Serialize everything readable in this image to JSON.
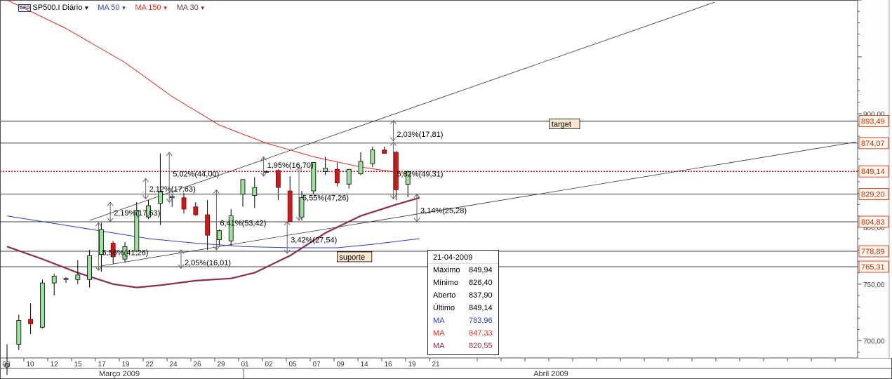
{
  "header": {
    "symbol": "SP500.I Diário",
    "badge": "CFD",
    "ma_items": [
      {
        "label": "MA 50",
        "color": "#2a3fbf"
      },
      {
        "label": "MA 150",
        "color": "#e03020"
      },
      {
        "label": "MA 30",
        "color": "#8b2b52"
      }
    ]
  },
  "info_panel": {
    "date": "21-04-2009",
    "rows": [
      {
        "label": "Máximo",
        "value": "849,94",
        "color": "#000000"
      },
      {
        "label": "Mínimo",
        "value": "826,40",
        "color": "#000000"
      },
      {
        "label": "Aberto",
        "value": "837,90",
        "color": "#000000"
      },
      {
        "label": "Último",
        "value": "849,14",
        "color": "#000000"
      },
      {
        "label": "MA",
        "value": "783,96",
        "color": "#2a3fbf"
      },
      {
        "label": "MA",
        "value": "847,33",
        "color": "#e03020"
      },
      {
        "label": "MA",
        "value": "820,55",
        "color": "#8b2b52"
      }
    ]
  },
  "chart_data": {
    "type": "candlestick",
    "title": "SP500.I Diário",
    "ylim": [
      685,
      1000
    ],
    "y_ticks": [
      {
        "value": 700,
        "label": "700,00"
      },
      {
        "value": 750,
        "label": "750,00"
      },
      {
        "value": 800,
        "label": "800,00"
      },
      {
        "value": 900,
        "label": "900,00"
      }
    ],
    "month_labels": [
      {
        "at": "Março",
        "label": "Março 2009"
      },
      {
        "at": "Abril",
        "label": "Abril 2009"
      }
    ],
    "x_ticks": [
      "08",
      "10",
      "12",
      "15",
      "17",
      "19",
      "22",
      "24",
      "26",
      "29",
      "01",
      "02",
      "05",
      "07",
      "09",
      "14",
      "16",
      "19",
      "21"
    ],
    "candles": [
      {
        "o": 677,
        "h": 697,
        "l": 670,
        "c": 680
      },
      {
        "o": 697,
        "h": 723,
        "l": 692,
        "c": 718
      },
      {
        "o": 719,
        "h": 733,
        "l": 706,
        "c": 715
      },
      {
        "o": 712,
        "h": 754,
        "l": 711,
        "c": 751
      },
      {
        "o": 751,
        "h": 759,
        "l": 740,
        "c": 757
      },
      {
        "o": 754,
        "h": 756,
        "l": 751,
        "c": 755
      },
      {
        "o": 754,
        "h": 771,
        "l": 750,
        "c": 758
      },
      {
        "o": 754,
        "h": 780,
        "l": 747,
        "c": 775
      },
      {
        "o": 776,
        "h": 804,
        "l": 761,
        "c": 798
      },
      {
        "o": 786,
        "h": 788,
        "l": 768,
        "c": 774
      },
      {
        "o": 772,
        "h": 787,
        "l": 769,
        "c": 783
      },
      {
        "o": 779,
        "h": 822,
        "l": 778,
        "c": 815
      },
      {
        "o": 809,
        "h": 824,
        "l": 807,
        "c": 819
      },
      {
        "o": 821,
        "h": 865,
        "l": 802,
        "c": 831
      },
      {
        "o": 826,
        "h": 829,
        "l": 818,
        "c": 827
      },
      {
        "o": 826,
        "h": 830,
        "l": 812,
        "c": 816
      },
      {
        "o": 818,
        "h": 822,
        "l": 810,
        "c": 811
      },
      {
        "o": 811,
        "h": 824,
        "l": 780,
        "c": 793
      },
      {
        "o": 789,
        "h": 798,
        "l": 784,
        "c": 797
      },
      {
        "o": 788,
        "h": 816,
        "l": 784,
        "c": 810
      },
      {
        "o": 829,
        "h": 839,
        "l": 818,
        "c": 842
      },
      {
        "o": 828,
        "h": 844,
        "l": 817,
        "c": 835
      },
      {
        "o": 849,
        "h": 850,
        "l": 848,
        "c": 849
      },
      {
        "o": 850,
        "h": 851,
        "l": 824,
        "c": 835
      },
      {
        "o": 832,
        "h": 845,
        "l": 807,
        "c": 805
      },
      {
        "o": 809,
        "h": 832,
        "l": 806,
        "c": 826
      },
      {
        "o": 832,
        "h": 857,
        "l": 829,
        "c": 857
      },
      {
        "o": 849,
        "h": 862,
        "l": 846,
        "c": 852
      },
      {
        "o": 851,
        "h": 857,
        "l": 836,
        "c": 839
      },
      {
        "o": 838,
        "h": 849,
        "l": 834,
        "c": 851
      },
      {
        "o": 847,
        "h": 866,
        "l": 846,
        "c": 858
      },
      {
        "o": 856,
        "h": 871,
        "l": 853,
        "c": 868
      },
      {
        "o": 868,
        "h": 871,
        "l": 866,
        "c": 865
      },
      {
        "o": 866,
        "h": 867,
        "l": 824,
        "c": 833
      },
      {
        "o": 837.9,
        "h": 849.94,
        "l": 826.4,
        "c": 849.14
      }
    ],
    "ma_series": [
      {
        "color": "#2a3fbf",
        "points": [
          [
            0,
            810
          ],
          [
            6,
            800
          ],
          [
            12,
            790
          ],
          [
            16,
            786
          ],
          [
            20,
            783
          ],
          [
            24,
            782
          ],
          [
            28,
            782
          ],
          [
            31,
            785
          ],
          [
            35,
            790
          ]
        ]
      },
      {
        "color": "#e03020",
        "points": [
          [
            0,
            1000
          ],
          [
            5,
            975
          ],
          [
            10,
            945
          ],
          [
            14,
            915
          ],
          [
            18,
            890
          ],
          [
            22,
            874
          ],
          [
            26,
            862
          ],
          [
            30,
            853
          ],
          [
            34,
            847
          ]
        ]
      },
      {
        "color": "#8b2b52",
        "points": [
          [
            0,
            783
          ],
          [
            3,
            772
          ],
          [
            6,
            760
          ],
          [
            9,
            750
          ],
          [
            11,
            747
          ],
          [
            13,
            749
          ],
          [
            16,
            753
          ],
          [
            19,
            755
          ],
          [
            21,
            760
          ],
          [
            24,
            775
          ],
          [
            27,
            795
          ],
          [
            30,
            810
          ],
          [
            33,
            820
          ],
          [
            35,
            826
          ]
        ]
      }
    ],
    "horizontal_levels": [
      {
        "value": 893.49,
        "label": "893,49",
        "style": "solid"
      },
      {
        "value": 874.07,
        "label": "874,07",
        "style": "solid"
      },
      {
        "value": 849.14,
        "label": "849,14",
        "style": "dotted"
      },
      {
        "value": 829.2,
        "label": "829,20",
        "style": "solid"
      },
      {
        "value": 804.83,
        "label": "804,83",
        "style": "solid"
      },
      {
        "value": 778.89,
        "label": "778,89",
        "style": "solid"
      },
      {
        "value": 765.31,
        "label": "765,31",
        "style": "solid"
      }
    ],
    "trendlines": [
      {
        "from": [
          7,
          806
        ],
        "to": [
          60,
          998
        ]
      },
      {
        "from": [
          8,
          766
        ],
        "to": [
          72,
          875
        ]
      }
    ],
    "boxed_labels": [
      {
        "text": "target",
        "at": [
          46,
          891
        ]
      },
      {
        "text": "suporte",
        "at": [
          28,
          774
        ]
      }
    ],
    "measures": [
      {
        "text": "5,56%(41,26)",
        "i": 8,
        "from": 762,
        "to": 804,
        "label_y": 778
      },
      {
        "text": "2,19%(17,63)",
        "i": 9,
        "from": 805,
        "to": 822,
        "label_y": 813
      },
      {
        "text": "2,12%(17,63)",
        "i": 12,
        "from": 825,
        "to": 843,
        "label_y": 834
      },
      {
        "text": "5,02%(44,00)",
        "i": 14,
        "from": 822,
        "to": 866,
        "label_y": 847
      },
      {
        "text": "2,05%(16,01)",
        "i": 15,
        "from": 764,
        "to": 780,
        "label_y": 769
      },
      {
        "text": "6,41%(53,42)",
        "i": 18,
        "from": 780,
        "to": 833,
        "label_y": 804
      },
      {
        "text": "1,95%(16,70)",
        "i": 22,
        "from": 845,
        "to": 862,
        "label_y": 855
      },
      {
        "text": "3,42%(27,54)",
        "i": 24,
        "from": 777,
        "to": 805,
        "label_y": 789
      },
      {
        "text": "5,55%(47,26)",
        "i": 25,
        "from": 806,
        "to": 853,
        "label_y": 826
      },
      {
        "text": "2,03%(17,81)",
        "i": 33,
        "from": 876,
        "to": 894,
        "label_y": 882
      },
      {
        "text": "5,82%(49,31)",
        "i": 33,
        "from": 825,
        "to": 875,
        "label_y": 847
      },
      {
        "text": "3,14%(25,28)",
        "i": 35,
        "from": 805,
        "to": 829,
        "label_y": 815
      }
    ]
  }
}
